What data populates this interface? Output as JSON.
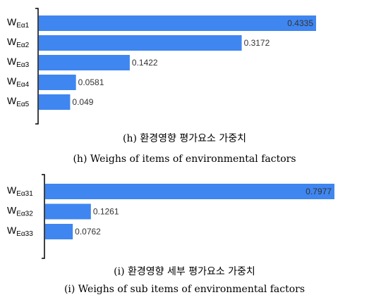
{
  "chart_data": [
    {
      "type": "bar",
      "orientation": "horizontal",
      "categories": [
        {
          "base": "W",
          "sub": "Eα1"
        },
        {
          "base": "W",
          "sub": "Eα2"
        },
        {
          "base": "W",
          "sub": "Eα3"
        },
        {
          "base": "W",
          "sub": "Eα4"
        },
        {
          "base": "W",
          "sub": "Eα5"
        }
      ],
      "values": [
        0.4335,
        0.3172,
        0.1422,
        0.0581,
        0.049
      ],
      "data_labels": [
        "0.4335",
        "0.3172",
        "0.1422",
        "0.0581",
        "0.049"
      ],
      "xlim": [
        0,
        0.4335
      ],
      "grid": false,
      "bar_color": "#3f86f0",
      "caption_ko": "(h) 환경영향 평가요소 가중치",
      "caption_en": "(h) Weighs of items of environmental factors"
    },
    {
      "type": "bar",
      "orientation": "horizontal",
      "categories": [
        {
          "base": "W",
          "sub": "Eα31"
        },
        {
          "base": "W",
          "sub": "Eα32"
        },
        {
          "base": "W",
          "sub": "Eα33"
        }
      ],
      "values": [
        0.7977,
        0.1261,
        0.0762
      ],
      "data_labels": [
        "0.7977",
        "0.1261",
        "0.0762"
      ],
      "xlim": [
        0,
        0.7977
      ],
      "grid": false,
      "bar_color": "#3f86f0",
      "caption_ko": "(i) 환경영향 세부 평가요소 가중치",
      "caption_en": "(i) Weighs of sub items of environmental factors"
    }
  ]
}
